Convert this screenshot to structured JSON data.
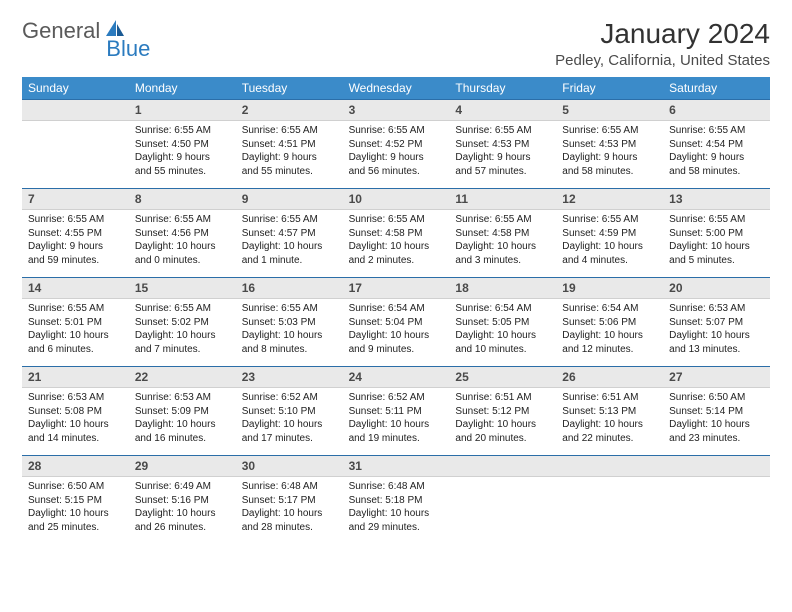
{
  "logo": {
    "general": "General",
    "blue": "Blue"
  },
  "title": "January 2024",
  "location": "Pedley, California, United States",
  "colors": {
    "header_bg": "#3b8bc9",
    "header_text": "#ffffff",
    "daynum_bg": "#e9e9e9",
    "daynum_text": "#4a4a4a",
    "border_top": "#2b6ea8",
    "border_bottom": "#d0d0d0",
    "body_text": "#222222",
    "logo_gray": "#5a5a5a",
    "logo_blue": "#2b7bbf"
  },
  "weekdays": [
    "Sunday",
    "Monday",
    "Tuesday",
    "Wednesday",
    "Thursday",
    "Friday",
    "Saturday"
  ],
  "weeks": [
    [
      {
        "n": "",
        "lines": []
      },
      {
        "n": "1",
        "lines": [
          "Sunrise: 6:55 AM",
          "Sunset: 4:50 PM",
          "Daylight: 9 hours",
          "and 55 minutes."
        ]
      },
      {
        "n": "2",
        "lines": [
          "Sunrise: 6:55 AM",
          "Sunset: 4:51 PM",
          "Daylight: 9 hours",
          "and 55 minutes."
        ]
      },
      {
        "n": "3",
        "lines": [
          "Sunrise: 6:55 AM",
          "Sunset: 4:52 PM",
          "Daylight: 9 hours",
          "and 56 minutes."
        ]
      },
      {
        "n": "4",
        "lines": [
          "Sunrise: 6:55 AM",
          "Sunset: 4:53 PM",
          "Daylight: 9 hours",
          "and 57 minutes."
        ]
      },
      {
        "n": "5",
        "lines": [
          "Sunrise: 6:55 AM",
          "Sunset: 4:53 PM",
          "Daylight: 9 hours",
          "and 58 minutes."
        ]
      },
      {
        "n": "6",
        "lines": [
          "Sunrise: 6:55 AM",
          "Sunset: 4:54 PM",
          "Daylight: 9 hours",
          "and 58 minutes."
        ]
      }
    ],
    [
      {
        "n": "7",
        "lines": [
          "Sunrise: 6:55 AM",
          "Sunset: 4:55 PM",
          "Daylight: 9 hours",
          "and 59 minutes."
        ]
      },
      {
        "n": "8",
        "lines": [
          "Sunrise: 6:55 AM",
          "Sunset: 4:56 PM",
          "Daylight: 10 hours",
          "and 0 minutes."
        ]
      },
      {
        "n": "9",
        "lines": [
          "Sunrise: 6:55 AM",
          "Sunset: 4:57 PM",
          "Daylight: 10 hours",
          "and 1 minute."
        ]
      },
      {
        "n": "10",
        "lines": [
          "Sunrise: 6:55 AM",
          "Sunset: 4:58 PM",
          "Daylight: 10 hours",
          "and 2 minutes."
        ]
      },
      {
        "n": "11",
        "lines": [
          "Sunrise: 6:55 AM",
          "Sunset: 4:58 PM",
          "Daylight: 10 hours",
          "and 3 minutes."
        ]
      },
      {
        "n": "12",
        "lines": [
          "Sunrise: 6:55 AM",
          "Sunset: 4:59 PM",
          "Daylight: 10 hours",
          "and 4 minutes."
        ]
      },
      {
        "n": "13",
        "lines": [
          "Sunrise: 6:55 AM",
          "Sunset: 5:00 PM",
          "Daylight: 10 hours",
          "and 5 minutes."
        ]
      }
    ],
    [
      {
        "n": "14",
        "lines": [
          "Sunrise: 6:55 AM",
          "Sunset: 5:01 PM",
          "Daylight: 10 hours",
          "and 6 minutes."
        ]
      },
      {
        "n": "15",
        "lines": [
          "Sunrise: 6:55 AM",
          "Sunset: 5:02 PM",
          "Daylight: 10 hours",
          "and 7 minutes."
        ]
      },
      {
        "n": "16",
        "lines": [
          "Sunrise: 6:55 AM",
          "Sunset: 5:03 PM",
          "Daylight: 10 hours",
          "and 8 minutes."
        ]
      },
      {
        "n": "17",
        "lines": [
          "Sunrise: 6:54 AM",
          "Sunset: 5:04 PM",
          "Daylight: 10 hours",
          "and 9 minutes."
        ]
      },
      {
        "n": "18",
        "lines": [
          "Sunrise: 6:54 AM",
          "Sunset: 5:05 PM",
          "Daylight: 10 hours",
          "and 10 minutes."
        ]
      },
      {
        "n": "19",
        "lines": [
          "Sunrise: 6:54 AM",
          "Sunset: 5:06 PM",
          "Daylight: 10 hours",
          "and 12 minutes."
        ]
      },
      {
        "n": "20",
        "lines": [
          "Sunrise: 6:53 AM",
          "Sunset: 5:07 PM",
          "Daylight: 10 hours",
          "and 13 minutes."
        ]
      }
    ],
    [
      {
        "n": "21",
        "lines": [
          "Sunrise: 6:53 AM",
          "Sunset: 5:08 PM",
          "Daylight: 10 hours",
          "and 14 minutes."
        ]
      },
      {
        "n": "22",
        "lines": [
          "Sunrise: 6:53 AM",
          "Sunset: 5:09 PM",
          "Daylight: 10 hours",
          "and 16 minutes."
        ]
      },
      {
        "n": "23",
        "lines": [
          "Sunrise: 6:52 AM",
          "Sunset: 5:10 PM",
          "Daylight: 10 hours",
          "and 17 minutes."
        ]
      },
      {
        "n": "24",
        "lines": [
          "Sunrise: 6:52 AM",
          "Sunset: 5:11 PM",
          "Daylight: 10 hours",
          "and 19 minutes."
        ]
      },
      {
        "n": "25",
        "lines": [
          "Sunrise: 6:51 AM",
          "Sunset: 5:12 PM",
          "Daylight: 10 hours",
          "and 20 minutes."
        ]
      },
      {
        "n": "26",
        "lines": [
          "Sunrise: 6:51 AM",
          "Sunset: 5:13 PM",
          "Daylight: 10 hours",
          "and 22 minutes."
        ]
      },
      {
        "n": "27",
        "lines": [
          "Sunrise: 6:50 AM",
          "Sunset: 5:14 PM",
          "Daylight: 10 hours",
          "and 23 minutes."
        ]
      }
    ],
    [
      {
        "n": "28",
        "lines": [
          "Sunrise: 6:50 AM",
          "Sunset: 5:15 PM",
          "Daylight: 10 hours",
          "and 25 minutes."
        ]
      },
      {
        "n": "29",
        "lines": [
          "Sunrise: 6:49 AM",
          "Sunset: 5:16 PM",
          "Daylight: 10 hours",
          "and 26 minutes."
        ]
      },
      {
        "n": "30",
        "lines": [
          "Sunrise: 6:48 AM",
          "Sunset: 5:17 PM",
          "Daylight: 10 hours",
          "and 28 minutes."
        ]
      },
      {
        "n": "31",
        "lines": [
          "Sunrise: 6:48 AM",
          "Sunset: 5:18 PM",
          "Daylight: 10 hours",
          "and 29 minutes."
        ]
      },
      {
        "n": "",
        "lines": []
      },
      {
        "n": "",
        "lines": []
      },
      {
        "n": "",
        "lines": []
      }
    ]
  ]
}
